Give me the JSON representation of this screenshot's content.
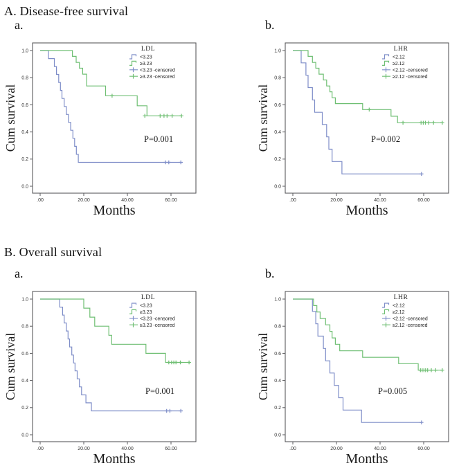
{
  "figure": {
    "sections": [
      {
        "title": "A. Disease-free survival"
      },
      {
        "title": "B. Overall survival"
      }
    ],
    "colors": {
      "low_group": "#7e8dc8",
      "high_group": "#6fbf73",
      "frame": "#59595c",
      "text": "#1a1a1a"
    }
  },
  "chart_data": [
    {
      "type": "line",
      "subtype": "kaplan-meier-step",
      "section": "A. Disease-free survival",
      "panel_label": "a.",
      "legend_title": "LDL",
      "p_value_label": "P=0.001",
      "xlabel": "Months",
      "ylabel": "Cum survival",
      "xlim": [
        0,
        74
      ],
      "ylim": [
        0,
        1.05
      ],
      "grid": false,
      "legend_position": "top-right",
      "x_ticks": [
        {
          "value": 0,
          "label": ".00"
        },
        {
          "value": 20,
          "label": "20.00"
        },
        {
          "value": 40,
          "label": "40.00"
        },
        {
          "value": 60,
          "label": "60.00"
        }
      ],
      "y_ticks": [
        {
          "value": 0.0,
          "label": "0.0"
        },
        {
          "value": 0.2,
          "label": "0.2"
        },
        {
          "value": 0.4,
          "label": "0.4"
        },
        {
          "value": 0.6,
          "label": "0.6"
        },
        {
          "value": 0.8,
          "label": "0.8"
        },
        {
          "value": 1.0,
          "label": "1.0"
        }
      ],
      "legend_items": [
        {
          "label": "<3.23",
          "color": "#7e8dc8",
          "symbol": "step"
        },
        {
          "label": "≥3.23",
          "color": "#6fbf73",
          "symbol": "step"
        },
        {
          "label": "<3.23 -censored",
          "color": "#7e8dc8",
          "symbol": "plus"
        },
        {
          "label": "≥3.23 -censored",
          "color": "#6fbf73",
          "symbol": "plus"
        }
      ],
      "series": [
        {
          "name": "<3.23",
          "color": "#7e8dc8",
          "start": 1.0,
          "end": 64.5,
          "drops": [
            [
              3.8,
              0.941
            ],
            [
              6.5,
              0.882
            ],
            [
              7.5,
              0.824
            ],
            [
              8.5,
              0.765
            ],
            [
              9.3,
              0.706
            ],
            [
              10,
              0.647
            ],
            [
              11,
              0.588
            ],
            [
              12,
              0.529
            ],
            [
              13,
              0.471
            ],
            [
              14,
              0.412
            ],
            [
              15,
              0.353
            ],
            [
              15.8,
              0.294
            ],
            [
              16.6,
              0.235
            ],
            [
              17.5,
              0.176
            ]
          ],
          "censored": [
            [
              57.5,
              0.176
            ],
            [
              59,
              0.176
            ],
            [
              64.5,
              0.176
            ]
          ]
        },
        {
          "name": "≥3.23",
          "color": "#6fbf73",
          "start": 1.0,
          "end": 65,
          "drops": [
            [
              14.8,
              0.957
            ],
            [
              16.5,
              0.913
            ],
            [
              18,
              0.87
            ],
            [
              19.5,
              0.826
            ],
            [
              21.3,
              0.739
            ],
            [
              30,
              0.667
            ],
            [
              44.5,
              0.593
            ],
            [
              49,
              0.519
            ]
          ],
          "censored": [
            [
              33,
              0.667
            ],
            [
              48,
              0.519
            ],
            [
              55,
              0.519
            ],
            [
              56.8,
              0.519
            ],
            [
              58.2,
              0.519
            ],
            [
              60.5,
              0.519
            ],
            [
              64.8,
              0.519
            ]
          ]
        }
      ]
    },
    {
      "type": "line",
      "subtype": "kaplan-meier-step",
      "section": "A. Disease-free survival",
      "panel_label": "b.",
      "legend_title": "LHR",
      "p_value_label": "P=0.002",
      "xlabel": "Months",
      "ylabel": "Cum survival",
      "xlim": [
        0,
        74
      ],
      "ylim": [
        0,
        1.05
      ],
      "grid": false,
      "legend_position": "top-right",
      "x_ticks": [
        {
          "value": 0,
          "label": ".00"
        },
        {
          "value": 20,
          "label": "20.00"
        },
        {
          "value": 40,
          "label": "40.00"
        },
        {
          "value": 60,
          "label": "60.00"
        }
      ],
      "y_ticks": [
        {
          "value": 0.0,
          "label": "0.0"
        },
        {
          "value": 0.2,
          "label": "0.2"
        },
        {
          "value": 0.4,
          "label": "0.4"
        },
        {
          "value": 0.6,
          "label": "0.6"
        },
        {
          "value": 0.8,
          "label": "0.8"
        },
        {
          "value": 1.0,
          "label": "1.0"
        }
      ],
      "legend_items": [
        {
          "label": "<2.12",
          "color": "#7e8dc8",
          "symbol": "step"
        },
        {
          "label": "≥2.12",
          "color": "#6fbf73",
          "symbol": "step"
        },
        {
          "label": "<2.12 -censored",
          "color": "#7e8dc8",
          "symbol": "plus"
        },
        {
          "label": "≥2.12 -censored",
          "color": "#6fbf73",
          "symbol": "plus"
        }
      ],
      "series": [
        {
          "name": "<2.12",
          "color": "#7e8dc8",
          "start": 1.0,
          "end": 59,
          "drops": [
            [
              3.8,
              0.909
            ],
            [
              6,
              0.818
            ],
            [
              7,
              0.727
            ],
            [
              9,
              0.636
            ],
            [
              10,
              0.545
            ],
            [
              13.5,
              0.455
            ],
            [
              15.5,
              0.364
            ],
            [
              16.5,
              0.273
            ],
            [
              18,
              0.182
            ],
            [
              22.5,
              0.091
            ]
          ],
          "censored": [
            [
              59,
              0.091
            ]
          ]
        },
        {
          "name": "≥2.12",
          "color": "#6fbf73",
          "start": 1.0,
          "end": 68.5,
          "drops": [
            [
              7,
              0.957
            ],
            [
              9,
              0.913
            ],
            [
              10.5,
              0.87
            ],
            [
              12,
              0.826
            ],
            [
              14,
              0.783
            ],
            [
              15.5,
              0.739
            ],
            [
              17,
              0.696
            ],
            [
              18,
              0.652
            ],
            [
              19.5,
              0.609
            ],
            [
              32,
              0.565
            ],
            [
              45,
              0.516
            ],
            [
              48,
              0.468
            ]
          ],
          "censored": [
            [
              35,
              0.565
            ],
            [
              50.5,
              0.468
            ],
            [
              58.8,
              0.468
            ],
            [
              59.8,
              0.468
            ],
            [
              60.8,
              0.468
            ],
            [
              62.3,
              0.468
            ],
            [
              64.5,
              0.468
            ],
            [
              68.5,
              0.468
            ]
          ]
        }
      ]
    },
    {
      "type": "line",
      "subtype": "kaplan-meier-step",
      "section": "B. Overall survival",
      "panel_label": "a.",
      "legend_title": "LDL",
      "p_value_label": "P=0.001",
      "xlabel": "Months",
      "ylabel": "Cum survival",
      "xlim": [
        0,
        74
      ],
      "ylim": [
        0,
        1.05
      ],
      "grid": false,
      "legend_position": "top-right",
      "x_ticks": [
        {
          "value": 0,
          "label": ".00"
        },
        {
          "value": 20,
          "label": "20.00"
        },
        {
          "value": 40,
          "label": "40.00"
        },
        {
          "value": 60,
          "label": "60.00"
        }
      ],
      "y_ticks": [
        {
          "value": 0.0,
          "label": "0.0"
        },
        {
          "value": 0.2,
          "label": "0.2"
        },
        {
          "value": 0.4,
          "label": "0.4"
        },
        {
          "value": 0.6,
          "label": "0.6"
        },
        {
          "value": 0.8,
          "label": "0.8"
        },
        {
          "value": 1.0,
          "label": "1.0"
        }
      ],
      "legend_items": [
        {
          "label": "<3.23",
          "color": "#7e8dc8",
          "symbol": "step"
        },
        {
          "label": "≥3.23",
          "color": "#6fbf73",
          "symbol": "step"
        },
        {
          "label": "<3.23 -censored",
          "color": "#7e8dc8",
          "symbol": "plus"
        },
        {
          "label": "≥3.23 -censored",
          "color": "#6fbf73",
          "symbol": "plus"
        }
      ],
      "series": [
        {
          "name": "<3.23",
          "color": "#7e8dc8",
          "start": 1.0,
          "end": 64.5,
          "drops": [
            [
              9,
              0.941
            ],
            [
              10.3,
              0.882
            ],
            [
              11,
              0.824
            ],
            [
              12,
              0.765
            ],
            [
              12.8,
              0.706
            ],
            [
              13.5,
              0.647
            ],
            [
              14.5,
              0.588
            ],
            [
              15.3,
              0.529
            ],
            [
              16,
              0.471
            ],
            [
              17,
              0.412
            ],
            [
              18,
              0.353
            ],
            [
              19,
              0.294
            ],
            [
              21,
              0.235
            ],
            [
              23.5,
              0.176
            ]
          ],
          "censored": [
            [
              58,
              0.176
            ],
            [
              59.5,
              0.176
            ],
            [
              64.5,
              0.176
            ]
          ]
        },
        {
          "name": "≥3.23",
          "color": "#6fbf73",
          "start": 1.0,
          "end": 68.5,
          "drops": [
            [
              20,
              0.933
            ],
            [
              22.8,
              0.867
            ],
            [
              25,
              0.8
            ],
            [
              31.5,
              0.733
            ],
            [
              32.8,
              0.667
            ],
            [
              48.5,
              0.6
            ],
            [
              57.5,
              0.533
            ]
          ],
          "censored": [
            [
              59,
              0.533
            ],
            [
              60.3,
              0.533
            ],
            [
              61.3,
              0.533
            ],
            [
              62.3,
              0.533
            ],
            [
              64.3,
              0.533
            ],
            [
              68.3,
              0.533
            ]
          ]
        }
      ]
    },
    {
      "type": "line",
      "subtype": "kaplan-meier-step",
      "section": "B. Overall survival",
      "panel_label": "b.",
      "legend_title": "LHR",
      "p_value_label": "P=0.005",
      "xlabel": "Months",
      "ylabel": "Cum survival",
      "xlim": [
        0,
        74
      ],
      "ylim": [
        0,
        1.05
      ],
      "grid": false,
      "legend_position": "top-right",
      "x_ticks": [
        {
          "value": 0,
          "label": ".00"
        },
        {
          "value": 20,
          "label": "20.00"
        },
        {
          "value": 40,
          "label": "40.00"
        },
        {
          "value": 60,
          "label": "60.00"
        }
      ],
      "y_ticks": [
        {
          "value": 0.0,
          "label": "0.0"
        },
        {
          "value": 0.2,
          "label": "0.2"
        },
        {
          "value": 0.4,
          "label": "0.4"
        },
        {
          "value": 0.6,
          "label": "0.6"
        },
        {
          "value": 0.8,
          "label": "0.8"
        },
        {
          "value": 1.0,
          "label": "1.0"
        }
      ],
      "legend_items": [
        {
          "label": "<2.12",
          "color": "#7e8dc8",
          "symbol": "step"
        },
        {
          "label": "≥2.12",
          "color": "#6fbf73",
          "symbol": "step"
        },
        {
          "label": "<2.12 -censored",
          "color": "#7e8dc8",
          "symbol": "plus"
        },
        {
          "label": "≥2.12 -censored",
          "color": "#6fbf73",
          "symbol": "plus"
        }
      ],
      "series": [
        {
          "name": "<2.12",
          "color": "#7e8dc8",
          "start": 1.0,
          "end": 59,
          "drops": [
            [
              9,
              0.909
            ],
            [
              10.5,
              0.818
            ],
            [
              11.5,
              0.727
            ],
            [
              14,
              0.636
            ],
            [
              15,
              0.545
            ],
            [
              17,
              0.455
            ],
            [
              19,
              0.364
            ],
            [
              21,
              0.273
            ],
            [
              23,
              0.182
            ],
            [
              31.5,
              0.091
            ]
          ],
          "censored": [
            [
              59,
              0.091
            ]
          ]
        },
        {
          "name": "≥2.12",
          "color": "#6fbf73",
          "start": 1.0,
          "end": 68.5,
          "drops": [
            [
              9.5,
              0.952
            ],
            [
              11,
              0.905
            ],
            [
              12.5,
              0.857
            ],
            [
              15,
              0.81
            ],
            [
              17,
              0.762
            ],
            [
              18,
              0.714
            ],
            [
              19.5,
              0.667
            ],
            [
              21.5,
              0.619
            ],
            [
              32,
              0.571
            ],
            [
              48.5,
              0.524
            ],
            [
              57.5,
              0.476
            ]
          ],
          "censored": [
            [
              58.5,
              0.476
            ],
            [
              59.3,
              0.476
            ],
            [
              60.1,
              0.476
            ],
            [
              60.9,
              0.476
            ],
            [
              61.8,
              0.476
            ],
            [
              63.5,
              0.476
            ],
            [
              65.5,
              0.476
            ],
            [
              68.5,
              0.476
            ]
          ]
        }
      ]
    }
  ]
}
